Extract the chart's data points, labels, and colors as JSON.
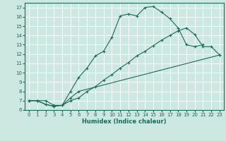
{
  "xlabel": "Humidex (Indice chaleur)",
  "bg_color": "#cce8e0",
  "line_color": "#1a6b5a",
  "xlim": [
    -0.5,
    23.5
  ],
  "ylim": [
    6,
    17.5
  ],
  "xticks": [
    0,
    1,
    2,
    3,
    4,
    5,
    6,
    7,
    8,
    9,
    10,
    11,
    12,
    13,
    14,
    15,
    16,
    17,
    18,
    19,
    20,
    21,
    22,
    23
  ],
  "yticks": [
    6,
    7,
    8,
    9,
    10,
    11,
    12,
    13,
    14,
    15,
    16,
    17
  ],
  "line1_x": [
    0,
    1,
    2,
    3,
    4,
    5,
    6,
    7,
    8,
    9,
    10,
    11,
    12,
    13,
    14,
    15,
    16,
    17,
    18,
    19,
    20,
    21
  ],
  "line1_y": [
    7.0,
    7.0,
    7.0,
    6.5,
    6.5,
    8.0,
    9.5,
    10.5,
    11.8,
    12.3,
    13.8,
    16.1,
    16.3,
    16.1,
    17.0,
    17.1,
    16.5,
    15.8,
    14.8,
    13.0,
    12.8,
    13.0
  ],
  "line2_x": [
    0,
    1,
    2,
    3,
    4,
    5,
    6,
    7,
    8,
    9,
    10,
    11,
    12,
    13,
    14,
    15,
    16,
    17,
    18,
    19,
    20,
    21,
    22,
    23
  ],
  "line2_y": [
    7.0,
    7.0,
    6.6,
    6.4,
    6.5,
    7.0,
    7.3,
    8.0,
    8.5,
    9.2,
    9.8,
    10.5,
    11.1,
    11.8,
    12.3,
    12.9,
    13.5,
    14.0,
    14.5,
    14.8,
    14.1,
    12.8,
    12.8,
    11.9
  ],
  "line3_x": [
    0,
    1,
    2,
    3,
    4,
    5,
    6,
    23
  ],
  "line3_y": [
    7.0,
    7.0,
    6.6,
    6.4,
    6.5,
    7.3,
    8.0,
    11.9
  ]
}
